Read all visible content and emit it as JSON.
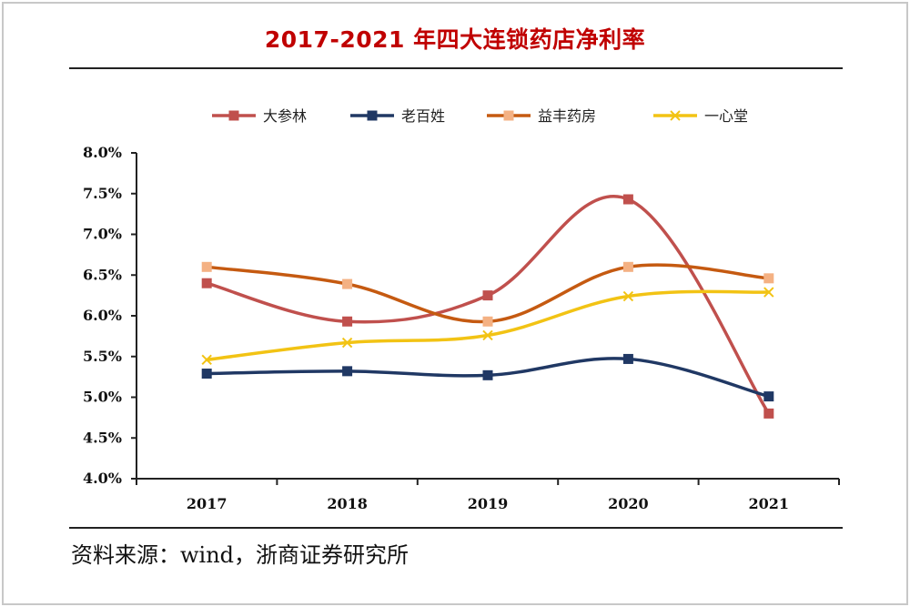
{
  "title": "2017-2021 年四大连锁药店净利率",
  "source": "资料来源：wind，浙商证券研究所",
  "chart_data": {
    "type": "line",
    "title": "2017-2021 年四大连锁药店净利率",
    "xlabel": "",
    "ylabel": "",
    "categories": [
      "2017",
      "2018",
      "2019",
      "2020",
      "2021"
    ],
    "ylim": [
      4.0,
      8.0
    ],
    "yticks": [
      "4.0%",
      "4.5%",
      "5.0%",
      "5.5%",
      "6.0%",
      "6.5%",
      "7.0%",
      "7.5%",
      "8.0%"
    ],
    "legend_position": "top",
    "grid": false,
    "smooth": true,
    "series": [
      {
        "name": "大参林",
        "values": [
          6.4,
          5.93,
          6.25,
          7.43,
          4.8
        ],
        "color": "#c0504d",
        "marker": "square"
      },
      {
        "name": "老百姓",
        "values": [
          5.29,
          5.32,
          5.27,
          5.47,
          5.01
        ],
        "color": "#203864",
        "marker": "square"
      },
      {
        "name": "益丰药房",
        "values": [
          6.6,
          6.39,
          5.93,
          6.6,
          6.46
        ],
        "color": "#c55a11",
        "marker": "square-light",
        "marker_color": "#f4b183"
      },
      {
        "name": "一心堂",
        "values": [
          5.46,
          5.67,
          5.76,
          6.24,
          6.29
        ],
        "color": "#f2c314",
        "marker": "x"
      }
    ]
  }
}
